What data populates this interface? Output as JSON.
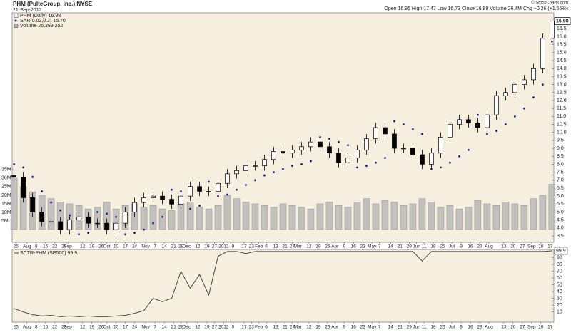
{
  "chart_data": [
    {
      "type": "candlestick",
      "title": "PHM (PulteGroup, Inc.) NYSE",
      "subtitle": "21-Sep-2012",
      "quote": "Open 16.95 High 17.47 Low 16.73 Close 16.98 Volume 26.4M Chg +0.26 (+1.55%)",
      "credit": "© StockCharts.com",
      "x": [
        1,
        6,
        11,
        16,
        21,
        26,
        31,
        36,
        41,
        46,
        51,
        56,
        61,
        66,
        71,
        76,
        81,
        86,
        91,
        96,
        101,
        106,
        111,
        116,
        121,
        126,
        131,
        136,
        141,
        146,
        151,
        156,
        161,
        166,
        171,
        176,
        181,
        186,
        191,
        196,
        201,
        206,
        211,
        216,
        221,
        226,
        231,
        236,
        241,
        246,
        251,
        256,
        261,
        266,
        271,
        276,
        281,
        286,
        291
      ],
      "xlim": [
        0,
        292
      ],
      "xticks": [
        {
          "value": 2,
          "label": "25"
        },
        {
          "value": 8,
          "label": "Aug"
        },
        {
          "value": 13,
          "label": "8"
        },
        {
          "value": 18,
          "label": "15"
        },
        {
          "value": 23,
          "label": "22"
        },
        {
          "value": 28,
          "label": "29"
        },
        {
          "value": 30,
          "label": "Sep"
        },
        {
          "value": 38,
          "label": "12"
        },
        {
          "value": 43,
          "label": "19"
        },
        {
          "value": 48,
          "label": "26"
        },
        {
          "value": 51,
          "label": "Oct"
        },
        {
          "value": 56,
          "label": "10"
        },
        {
          "value": 61,
          "label": "17"
        },
        {
          "value": 66,
          "label": "24"
        },
        {
          "value": 72,
          "label": "Nov"
        },
        {
          "value": 77,
          "label": "7"
        },
        {
          "value": 82,
          "label": "14"
        },
        {
          "value": 87,
          "label": "21"
        },
        {
          "value": 91,
          "label": "28"
        },
        {
          "value": 94,
          "label": "Dec"
        },
        {
          "value": 100,
          "label": "12"
        },
        {
          "value": 105,
          "label": "19"
        },
        {
          "value": 109,
          "label": "27"
        },
        {
          "value": 114,
          "label": "2012"
        },
        {
          "value": 119,
          "label": "9"
        },
        {
          "value": 125,
          "label": "17"
        },
        {
          "value": 129,
          "label": "23"
        },
        {
          "value": 133,
          "label": "Feb"
        },
        {
          "value": 137,
          "label": "6"
        },
        {
          "value": 142,
          "label": "13"
        },
        {
          "value": 147,
          "label": "21"
        },
        {
          "value": 151,
          "label": "27"
        },
        {
          "value": 154,
          "label": "Mar"
        },
        {
          "value": 160,
          "label": "12"
        },
        {
          "value": 165,
          "label": "19"
        },
        {
          "value": 170,
          "label": "26"
        },
        {
          "value": 174,
          "label": "Apr"
        },
        {
          "value": 179,
          "label": "9"
        },
        {
          "value": 184,
          "label": "16"
        },
        {
          "value": 189,
          "label": "23"
        },
        {
          "value": 194,
          "label": "May"
        },
        {
          "value": 198,
          "label": "7"
        },
        {
          "value": 204,
          "label": "14"
        },
        {
          "value": 209,
          "label": "21"
        },
        {
          "value": 214,
          "label": "29"
        },
        {
          "value": 218,
          "label": "Jun"
        },
        {
          "value": 222,
          "label": "11"
        },
        {
          "value": 227,
          "label": "18"
        },
        {
          "value": 232,
          "label": "25"
        },
        {
          "value": 237,
          "label": "Jul"
        },
        {
          "value": 242,
          "label": "9"
        },
        {
          "value": 247,
          "label": "16"
        },
        {
          "value": 252,
          "label": "23"
        },
        {
          "value": 257,
          "label": "Aug"
        },
        {
          "value": 265,
          "label": "13"
        },
        {
          "value": 270,
          "label": "20"
        },
        {
          "value": 275,
          "label": "27"
        },
        {
          "value": 280,
          "label": "Sep"
        },
        {
          "value": 285,
          "label": "10"
        },
        {
          "value": 290,
          "label": "17"
        }
      ],
      "ylim": [
        3.1,
        17.5
      ],
      "yticks": [
        3.5,
        {
          "value": 4,
          "label": "4.0"
        },
        4.5,
        {
          "value": 5,
          "label": "5.0"
        },
        5.5,
        {
          "value": 6,
          "label": "6.0"
        },
        6.5,
        {
          "value": 7,
          "label": "7.0"
        },
        7.5,
        {
          "value": 8,
          "label": "8.0"
        },
        8.5,
        {
          "value": 9,
          "label": "9.0"
        },
        9.5,
        {
          "value": 10,
          "label": "10.0"
        },
        10.5,
        {
          "value": 11,
          "label": "11.0"
        },
        11.5,
        {
          "value": 12,
          "label": "12.0"
        },
        12.5,
        {
          "value": 13,
          "label": "13.0"
        },
        13.5,
        {
          "value": 14,
          "label": "14.0"
        },
        14.5,
        {
          "value": 15,
          "label": "15.0"
        },
        15.5,
        {
          "value": 16,
          "label": "16.0"
        },
        16.5
      ],
      "y2lim": [
        -7.5,
        126.5
      ],
      "y2ticks": [
        {
          "value": 5,
          "label": "5M"
        },
        {
          "value": 10,
          "label": "10M"
        },
        {
          "value": 15,
          "label": "15M"
        },
        {
          "value": 20,
          "label": "20M"
        },
        {
          "value": 25,
          "label": "25M"
        },
        {
          "value": 30,
          "label": "30M"
        },
        {
          "value": 35,
          "label": "35M"
        }
      ],
      "series": [
        {
          "name": "PHM (Daily) 16.98",
          "style": "candles",
          "color": "#000000",
          "open": [
            7.3,
            7.2,
            5.9,
            5.0,
            4.4,
            4.4,
            3.9,
            4.5,
            4.7,
            4.3,
            4.3,
            3.9,
            4.3,
            5.0,
            5.6,
            5.9,
            6.0,
            5.8,
            5.5,
            6.0,
            6.6,
            6.3,
            6.3,
            6.8,
            7.4,
            7.6,
            7.9,
            7.9,
            8.3,
            8.8,
            8.7,
            8.9,
            9.1,
            9.4,
            9.1,
            8.7,
            8.1,
            8.4,
            8.9,
            9.6,
            10.3,
            9.9,
            9.0,
            9.0,
            8.6,
            8.0,
            8.7,
            9.7,
            10.5,
            10.8,
            10.6,
            10.3,
            11.1,
            12.3,
            12.5,
            13.0,
            13.3,
            14.0,
            15.9
          ],
          "high": [
            7.6,
            7.5,
            6.2,
            5.3,
            4.7,
            4.7,
            4.8,
            5.0,
            5.0,
            4.6,
            4.6,
            4.6,
            5.3,
            5.9,
            6.2,
            6.3,
            6.3,
            6.1,
            6.3,
            6.9,
            6.9,
            6.6,
            7.1,
            7.7,
            7.9,
            8.2,
            8.2,
            8.6,
            9.1,
            9.1,
            9.2,
            9.4,
            9.7,
            9.7,
            9.4,
            9.0,
            8.7,
            9.2,
            9.9,
            10.6,
            10.6,
            10.2,
            9.3,
            9.3,
            8.9,
            9.0,
            10.0,
            10.8,
            11.1,
            11.1,
            10.9,
            11.4,
            12.6,
            12.8,
            13.3,
            13.6,
            14.3,
            16.2,
            17.47
          ],
          "low": [
            6.9,
            5.6,
            4.7,
            4.1,
            4.1,
            3.6,
            3.6,
            4.2,
            4.0,
            4.0,
            3.6,
            3.6,
            4.0,
            4.7,
            5.3,
            5.6,
            5.5,
            5.2,
            5.2,
            5.7,
            6.0,
            6.0,
            6.0,
            6.5,
            7.1,
            7.3,
            7.6,
            7.6,
            8.0,
            8.4,
            8.4,
            8.6,
            8.8,
            8.8,
            8.4,
            7.8,
            7.8,
            8.1,
            8.6,
            9.3,
            9.6,
            8.7,
            8.7,
            8.3,
            7.7,
            7.7,
            8.4,
            9.4,
            10.2,
            10.3,
            10.0,
            10.0,
            10.8,
            12.0,
            12.2,
            12.7,
            13.0,
            13.7,
            15.6
          ],
          "close": [
            7.2,
            5.9,
            5.0,
            4.4,
            4.4,
            3.9,
            4.5,
            4.7,
            4.3,
            4.3,
            3.9,
            4.3,
            5.0,
            5.6,
            5.9,
            6.0,
            5.8,
            5.5,
            6.0,
            6.6,
            6.3,
            6.3,
            6.8,
            7.4,
            7.6,
            7.9,
            7.9,
            8.3,
            8.8,
            8.7,
            8.9,
            9.1,
            9.4,
            9.1,
            8.7,
            8.1,
            8.4,
            8.9,
            9.6,
            10.3,
            9.9,
            9.0,
            9.0,
            8.6,
            8.0,
            8.7,
            9.7,
            10.5,
            10.8,
            10.6,
            10.3,
            11.1,
            12.3,
            12.5,
            13.0,
            13.3,
            14.0,
            15.9,
            16.98
          ]
        },
        {
          "name": "SAR(0.02,0.2) 15.70",
          "style": "dots",
          "color": "#22228c",
          "values": [
            8.0,
            7.8,
            7.2,
            6.3,
            5.6,
            5.1,
            4.8,
            3.6,
            3.7,
            5.0,
            4.9,
            4.7,
            3.6,
            3.7,
            3.9,
            4.3,
            4.7,
            6.4,
            6.3,
            5.2,
            5.4,
            6.9,
            6.0,
            6.1,
            6.4,
            6.7,
            7.0,
            7.3,
            7.5,
            7.7,
            7.9,
            8.0,
            8.2,
            9.7,
            9.6,
            9.4,
            9.2,
            7.8,
            7.9,
            8.1,
            8.4,
            10.7,
            10.5,
            10.2,
            9.9,
            7.7,
            7.8,
            8.1,
            8.5,
            8.9,
            11.1,
            9.9,
            10.1,
            10.5,
            11.0,
            11.5,
            12.2,
            13.0,
            15.7
          ]
        },
        {
          "name": "Volume 26,359,252",
          "style": "bars",
          "axis": "y2",
          "color": "#b8b8b8",
          "values": [
            30,
            25,
            22,
            20,
            18,
            16,
            15,
            14,
            12,
            13,
            16,
            12,
            14,
            15,
            13,
            14,
            12,
            11,
            15,
            16,
            13,
            12,
            14,
            20,
            18,
            16,
            15,
            14,
            13,
            15,
            14,
            13,
            12,
            15,
            16,
            14,
            13,
            16,
            18,
            15,
            17,
            16,
            14,
            15,
            18,
            16,
            13,
            14,
            12,
            13,
            17,
            15,
            14,
            16,
            15,
            14,
            18,
            20,
            26.4
          ]
        }
      ]
    },
    {
      "type": "line",
      "x": [
        1,
        6,
        11,
        16,
        21,
        26,
        31,
        36,
        41,
        46,
        51,
        56,
        61,
        66,
        71,
        76,
        81,
        86,
        91,
        96,
        101,
        106,
        111,
        116,
        121,
        126,
        131,
        136,
        141,
        146,
        151,
        156,
        161,
        166,
        171,
        176,
        181,
        186,
        191,
        196,
        201,
        206,
        211,
        216,
        221,
        226,
        231,
        236,
        241,
        246,
        251,
        256,
        261,
        266,
        271,
        276,
        281,
        286,
        291
      ],
      "xlim": [
        0,
        292
      ],
      "xticks": [
        {
          "value": 2,
          "label": "25"
        },
        {
          "value": 8,
          "label": "Aug"
        },
        {
          "value": 13,
          "label": "8"
        },
        {
          "value": 18,
          "label": "15"
        },
        {
          "value": 23,
          "label": "22"
        },
        {
          "value": 28,
          "label": "29"
        },
        {
          "value": 30,
          "label": "Sep"
        },
        {
          "value": 38,
          "label": "12"
        },
        {
          "value": 43,
          "label": "19"
        },
        {
          "value": 48,
          "label": "26"
        },
        {
          "value": 51,
          "label": "Oct"
        },
        {
          "value": 56,
          "label": "10"
        },
        {
          "value": 61,
          "label": "17"
        },
        {
          "value": 66,
          "label": "24"
        },
        {
          "value": 72,
          "label": "Nov"
        },
        {
          "value": 77,
          "label": "7"
        },
        {
          "value": 82,
          "label": "14"
        },
        {
          "value": 87,
          "label": "21"
        },
        {
          "value": 91,
          "label": "28"
        },
        {
          "value": 94,
          "label": "Dec"
        },
        {
          "value": 100,
          "label": "12"
        },
        {
          "value": 105,
          "label": "19"
        },
        {
          "value": 109,
          "label": "27"
        },
        {
          "value": 114,
          "label": "2012"
        },
        {
          "value": 119,
          "label": "9"
        },
        {
          "value": 125,
          "label": "17"
        },
        {
          "value": 129,
          "label": "23"
        },
        {
          "value": 133,
          "label": "Feb"
        },
        {
          "value": 137,
          "label": "6"
        },
        {
          "value": 142,
          "label": "13"
        },
        {
          "value": 147,
          "label": "21"
        },
        {
          "value": 151,
          "label": "27"
        },
        {
          "value": 154,
          "label": "Mar"
        },
        {
          "value": 160,
          "label": "12"
        },
        {
          "value": 165,
          "label": "19"
        },
        {
          "value": 170,
          "label": "26"
        },
        {
          "value": 174,
          "label": "Apr"
        },
        {
          "value": 179,
          "label": "9"
        },
        {
          "value": 184,
          "label": "16"
        },
        {
          "value": 189,
          "label": "23"
        },
        {
          "value": 194,
          "label": "May"
        },
        {
          "value": 198,
          "label": "7"
        },
        {
          "value": 204,
          "label": "14"
        },
        {
          "value": 209,
          "label": "21"
        },
        {
          "value": 214,
          "label": "29"
        },
        {
          "value": 218,
          "label": "Jun"
        },
        {
          "value": 222,
          "label": "11"
        },
        {
          "value": 227,
          "label": "18"
        },
        {
          "value": 232,
          "label": "25"
        },
        {
          "value": 237,
          "label": "Jul"
        },
        {
          "value": 242,
          "label": "9"
        },
        {
          "value": 247,
          "label": "16"
        },
        {
          "value": 252,
          "label": "23"
        },
        {
          "value": 257,
          "label": "Aug"
        },
        {
          "value": 265,
          "label": "13"
        },
        {
          "value": 270,
          "label": "20"
        },
        {
          "value": 275,
          "label": "27"
        },
        {
          "value": 280,
          "label": "Sep"
        },
        {
          "value": 285,
          "label": "10"
        },
        {
          "value": 290,
          "label": "17"
        }
      ],
      "ylim": [
        -5,
        102
      ],
      "yticks": [
        10,
        20,
        30,
        40,
        50,
        60,
        70,
        80,
        90
      ],
      "series": [
        {
          "name": "SCTR-PHM (SP500) 99.9",
          "color": "#444444",
          "values": [
            15,
            10,
            6,
            4,
            5,
            3,
            4,
            3,
            4,
            3,
            3,
            4,
            5,
            8,
            12,
            30,
            25,
            30,
            70,
            45,
            65,
            35,
            92,
            99,
            99,
            96,
            99,
            99,
            99,
            99,
            99,
            99,
            99,
            99,
            99,
            99,
            99,
            99,
            99,
            99,
            99,
            99,
            99,
            99,
            85,
            99,
            99,
            99,
            99,
            99,
            99,
            99,
            99,
            99,
            99,
            99,
            99,
            99,
            99.9
          ]
        }
      ]
    }
  ]
}
